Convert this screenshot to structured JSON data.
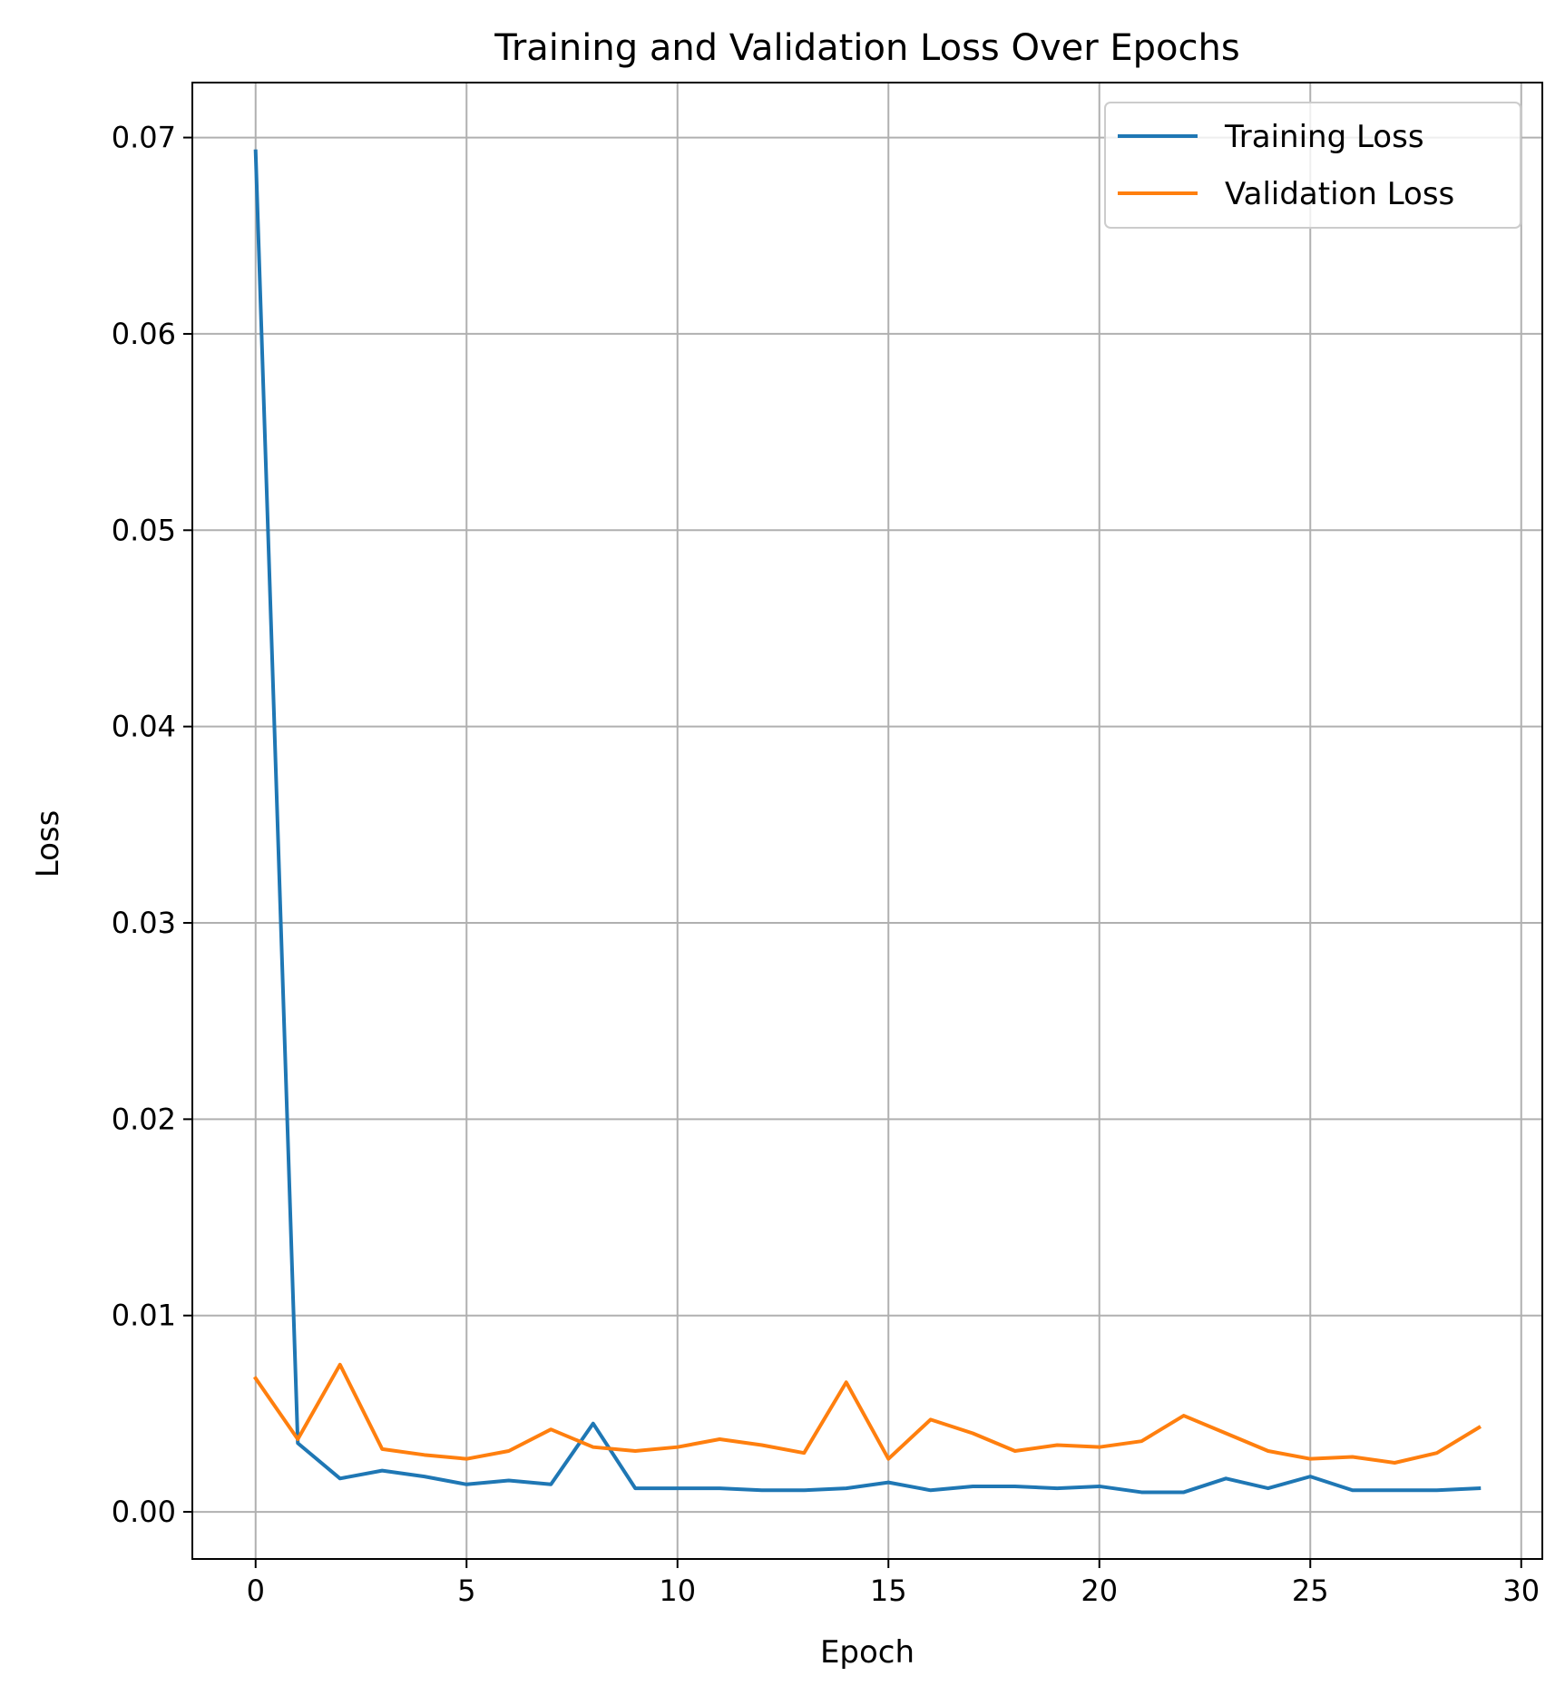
{
  "chart_data": {
    "type": "line",
    "title": "Training and Validation Loss Over Epochs",
    "xlabel": "Epoch",
    "ylabel": "Loss",
    "xlim": [
      -1.5,
      30.5
    ],
    "ylim": [
      -0.0024,
      0.0728
    ],
    "xticks": [
      0,
      5,
      10,
      15,
      20,
      25,
      30
    ],
    "yticks": [
      0.0,
      0.01,
      0.02,
      0.03,
      0.04,
      0.05,
      0.06,
      0.07
    ],
    "xtick_labels": [
      "0",
      "5",
      "10",
      "15",
      "20",
      "25",
      "30"
    ],
    "ytick_labels": [
      "0.00",
      "0.01",
      "0.02",
      "0.03",
      "0.04",
      "0.05",
      "0.06",
      "0.07"
    ],
    "grid": true,
    "legend_position": "top-right",
    "x": [
      0,
      1,
      2,
      3,
      4,
      5,
      6,
      7,
      8,
      9,
      10,
      11,
      12,
      13,
      14,
      15,
      16,
      17,
      18,
      19,
      20,
      21,
      22,
      23,
      24,
      25,
      26,
      27,
      28,
      29
    ],
    "series": [
      {
        "name": "Training Loss",
        "color": "#1f77b4",
        "values": [
          0.0693,
          0.0035,
          0.0017,
          0.0021,
          0.0018,
          0.0014,
          0.0016,
          0.0014,
          0.0045,
          0.0012,
          0.0012,
          0.0012,
          0.0011,
          0.0011,
          0.0012,
          0.0015,
          0.0011,
          0.0013,
          0.0013,
          0.0012,
          0.0013,
          0.001,
          0.001,
          0.0017,
          0.0012,
          0.0018,
          0.0011,
          0.0011,
          0.0011,
          0.0012
        ]
      },
      {
        "name": "Validation Loss",
        "color": "#ff7f0e",
        "values": [
          0.0068,
          0.0037,
          0.0075,
          0.0032,
          0.0029,
          0.0027,
          0.0031,
          0.0042,
          0.0033,
          0.0031,
          0.0033,
          0.0037,
          0.0034,
          0.003,
          0.0066,
          0.0027,
          0.0047,
          0.004,
          0.0031,
          0.0034,
          0.0033,
          0.0036,
          0.0049,
          0.004,
          0.0031,
          0.0027,
          0.0028,
          0.0025,
          0.003,
          0.0043
        ]
      }
    ]
  }
}
